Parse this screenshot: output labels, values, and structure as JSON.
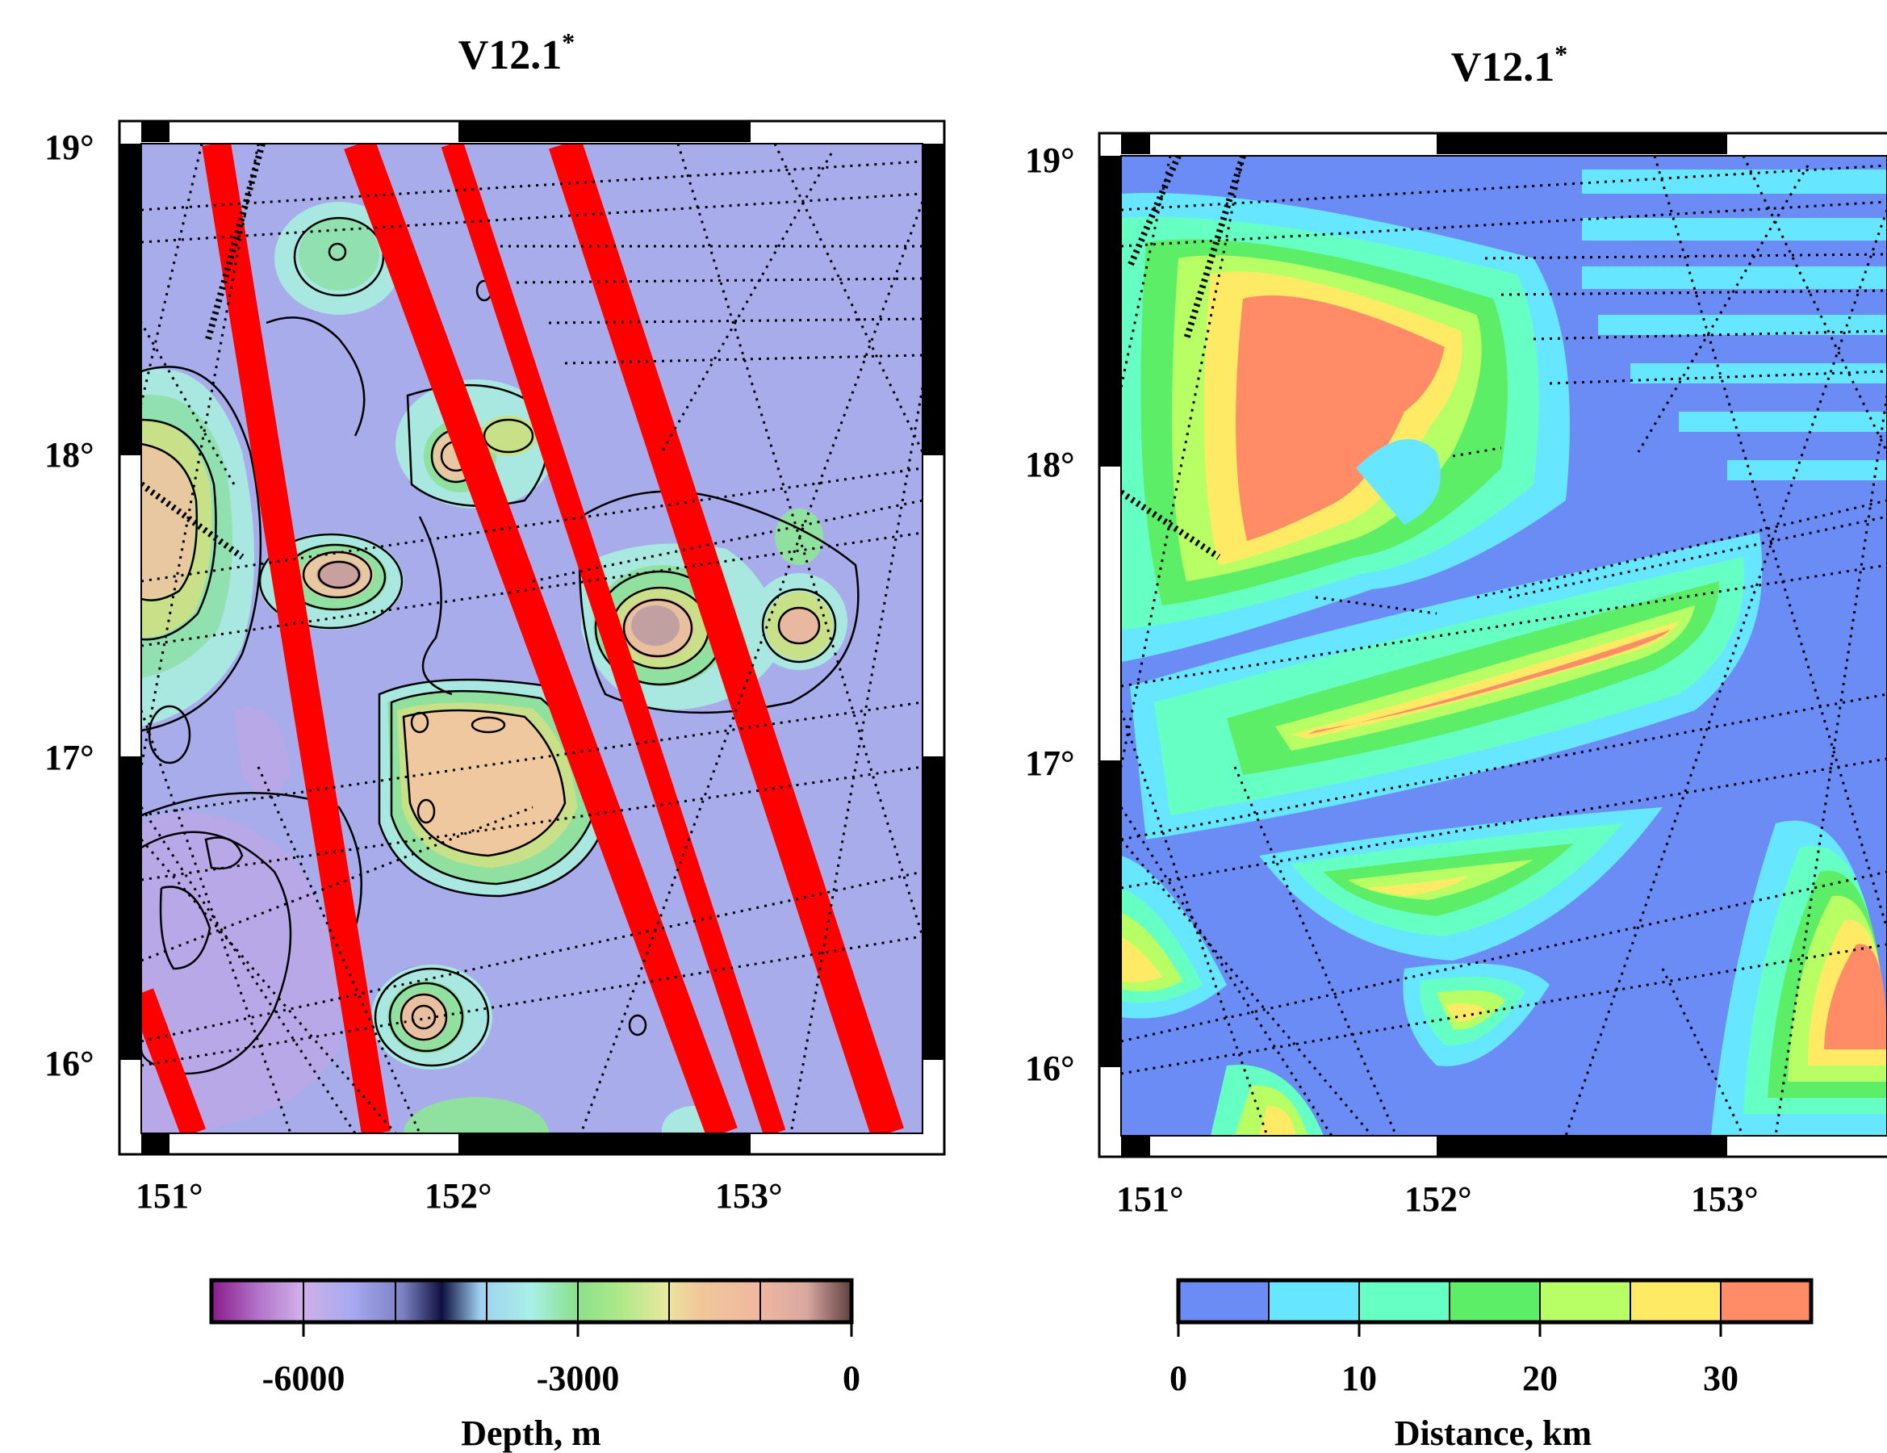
{
  "maps": [
    {
      "title": "V12.1",
      "title_superscript": "*",
      "x_ticks": [
        "151°",
        "152°",
        "153°"
      ],
      "y_ticks": [
        "19°",
        "18°",
        "17°",
        "16°"
      ],
      "colorbar": {
        "label": "Depth, m",
        "ticks": [
          "-6000",
          "-3000",
          "0"
        ],
        "range": [
          -7000,
          0
        ],
        "colors": [
          "#8a1a8a",
          "#b070c8",
          "#d0b0e8",
          "#a8a8f0",
          "#9aa8f0",
          "#a0d0f0",
          "#a8f0e8",
          "#90e8c0",
          "#8ae08a",
          "#b0e88a",
          "#e8e8a0",
          "#f0c898",
          "#f0b8a0",
          "#e8b0a8",
          "#c8a0a0"
        ]
      }
    },
    {
      "title": "V12.1",
      "title_superscript": "*",
      "x_ticks": [
        "151°",
        "152°",
        "153°"
      ],
      "y_ticks": [
        "19°",
        "18°",
        "17°",
        "16°"
      ],
      "colorbar": {
        "label": "Distance, km",
        "ticks": [
          "0",
          "10",
          "20",
          "30"
        ],
        "range": [
          0,
          35
        ],
        "colors": [
          "#6b8cf5",
          "#66e6ff",
          "#66ffc4",
          "#5cee66",
          "#b8ff66",
          "#ffea66",
          "#ff8c66"
        ]
      }
    }
  ],
  "chart_data": {
    "type": "heatmap",
    "lon_range": [
      150.9,
      153.5
    ],
    "lat_range": [
      15.75,
      19.05
    ],
    "depth_range_m": [
      -7000,
      0
    ],
    "distance_range_km": [
      0,
      35
    ],
    "distance_class_interval_km": 5
  }
}
